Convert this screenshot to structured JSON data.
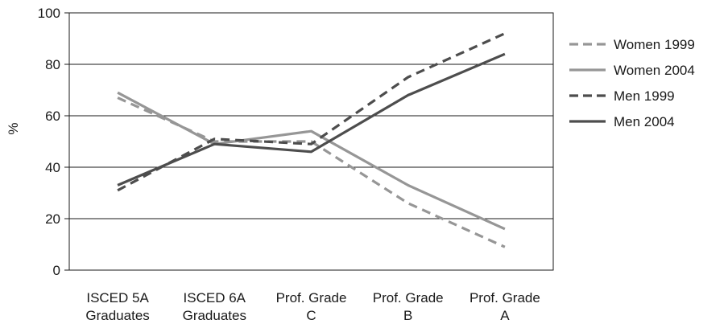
{
  "chart_data": {
    "type": "line",
    "title": "",
    "xlabel": "",
    "ylabel": "%",
    "ylim": [
      0,
      100
    ],
    "yticks": [
      0,
      20,
      40,
      60,
      80,
      100
    ],
    "grid": true,
    "legend_position": "right",
    "categories": [
      [
        "ISCED 5A",
        "Graduates"
      ],
      [
        "ISCED 6A",
        "Graduates"
      ],
      [
        "Prof. Grade",
        "C"
      ],
      [
        "Prof. Grade",
        "B"
      ],
      [
        "Prof. Grade",
        "A"
      ]
    ],
    "series": [
      {
        "name": "Women 1999",
        "values": [
          67,
          50,
          50,
          26,
          9
        ],
        "color": "#969696",
        "style": "dashed"
      },
      {
        "name": "Women 2004",
        "values": [
          69,
          49,
          54,
          33,
          16
        ],
        "color": "#969696",
        "style": "solid"
      },
      {
        "name": "Men 1999",
        "values": [
          31,
          51,
          49,
          75,
          92
        ],
        "color": "#4d4d4d",
        "style": "dashed"
      },
      {
        "name": "Men 2004",
        "values": [
          33,
          49,
          46,
          68,
          84
        ],
        "color": "#4d4d4d",
        "style": "solid"
      }
    ]
  }
}
